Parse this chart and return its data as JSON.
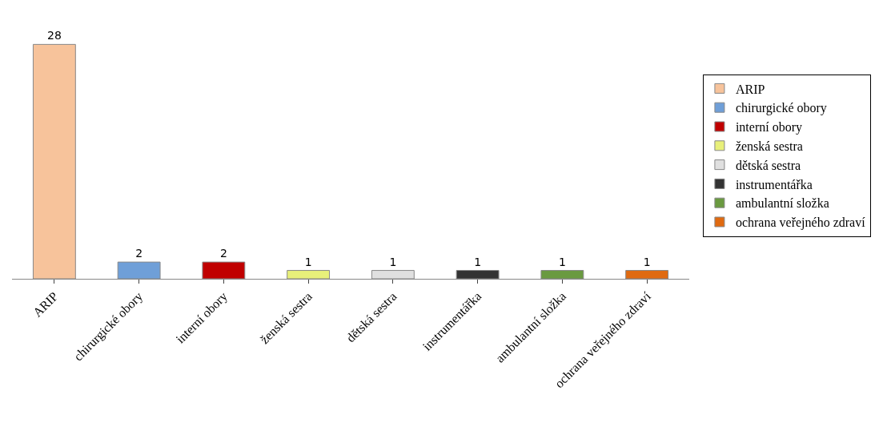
{
  "chart_data": {
    "type": "bar",
    "categories": [
      "ARIP",
      "chirurgické obory",
      "interní obory",
      "ženská sestra",
      "dětská sestra",
      "instrumentářka",
      "ambulantní složka",
      "ochrana veřejného zdraví"
    ],
    "series": [
      {
        "name": "ARIP",
        "color": "#f7c39b",
        "values": [
          28,
          null,
          null,
          null,
          null,
          null,
          null,
          null
        ]
      },
      {
        "name": "chirurgické obory",
        "color": "#6f9fd8",
        "values": [
          null,
          2,
          null,
          null,
          null,
          null,
          null,
          null
        ]
      },
      {
        "name": "interní obory",
        "color": "#c00000",
        "values": [
          null,
          null,
          2,
          null,
          null,
          null,
          null,
          null
        ]
      },
      {
        "name": "ženská sestra",
        "color": "#e8f07a",
        "values": [
          null,
          null,
          null,
          1,
          null,
          null,
          null,
          null
        ]
      },
      {
        "name": "dětská sestra",
        "color": "#e0e0e0",
        "values": [
          null,
          null,
          null,
          null,
          1,
          null,
          null,
          null
        ]
      },
      {
        "name": "instrumentářka",
        "color": "#333333",
        "values": [
          null,
          null,
          null,
          null,
          null,
          1,
          null,
          null
        ]
      },
      {
        "name": "ambulantní složka",
        "color": "#6a9a40",
        "values": [
          null,
          null,
          null,
          null,
          null,
          null,
          1,
          null
        ]
      },
      {
        "name": "ochrana veřejného zdraví",
        "color": "#e06a10",
        "values": [
          null,
          null,
          null,
          null,
          null,
          null,
          null,
          1
        ]
      }
    ],
    "data_labels": true,
    "legend": "right"
  }
}
